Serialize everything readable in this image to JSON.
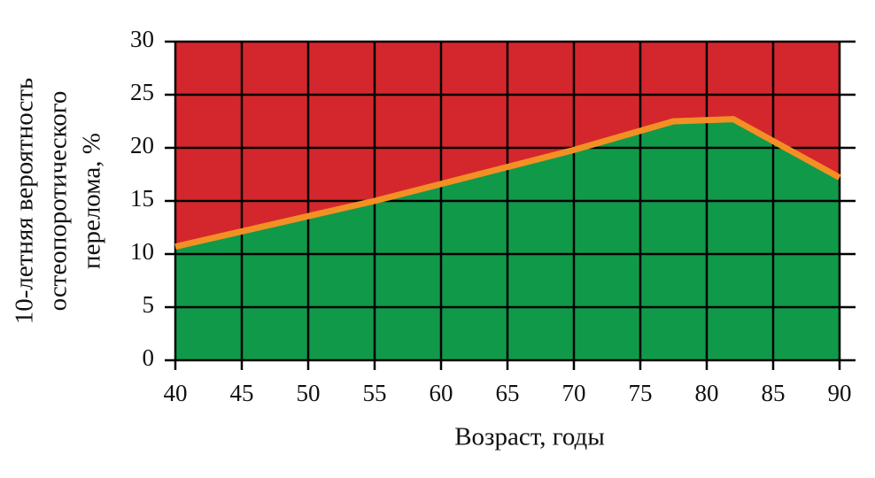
{
  "chart_data": {
    "type": "area",
    "x_label": "Возраст, годы",
    "y_label": [
      "10-летняя вероятность",
      "остеопоротического",
      "перелома, %"
    ],
    "x": [
      40,
      55,
      70,
      77.5,
      82,
      90
    ],
    "series": [
      {
        "color": "#f39024",
        "values": [
          10.7,
          15,
          19.8,
          22.5,
          22.7,
          17.2
        ]
      }
    ],
    "fill_below": "#11994a",
    "fill_above": "#d4272d",
    "xlim": [
      40,
      90
    ],
    "xticks": [
      40,
      45,
      50,
      55,
      60,
      65,
      70,
      75,
      80,
      85,
      90
    ],
    "ylim": [
      0,
      30
    ],
    "yticks": [
      0,
      5,
      10,
      15,
      20,
      25,
      30
    ],
    "grid": true
  }
}
